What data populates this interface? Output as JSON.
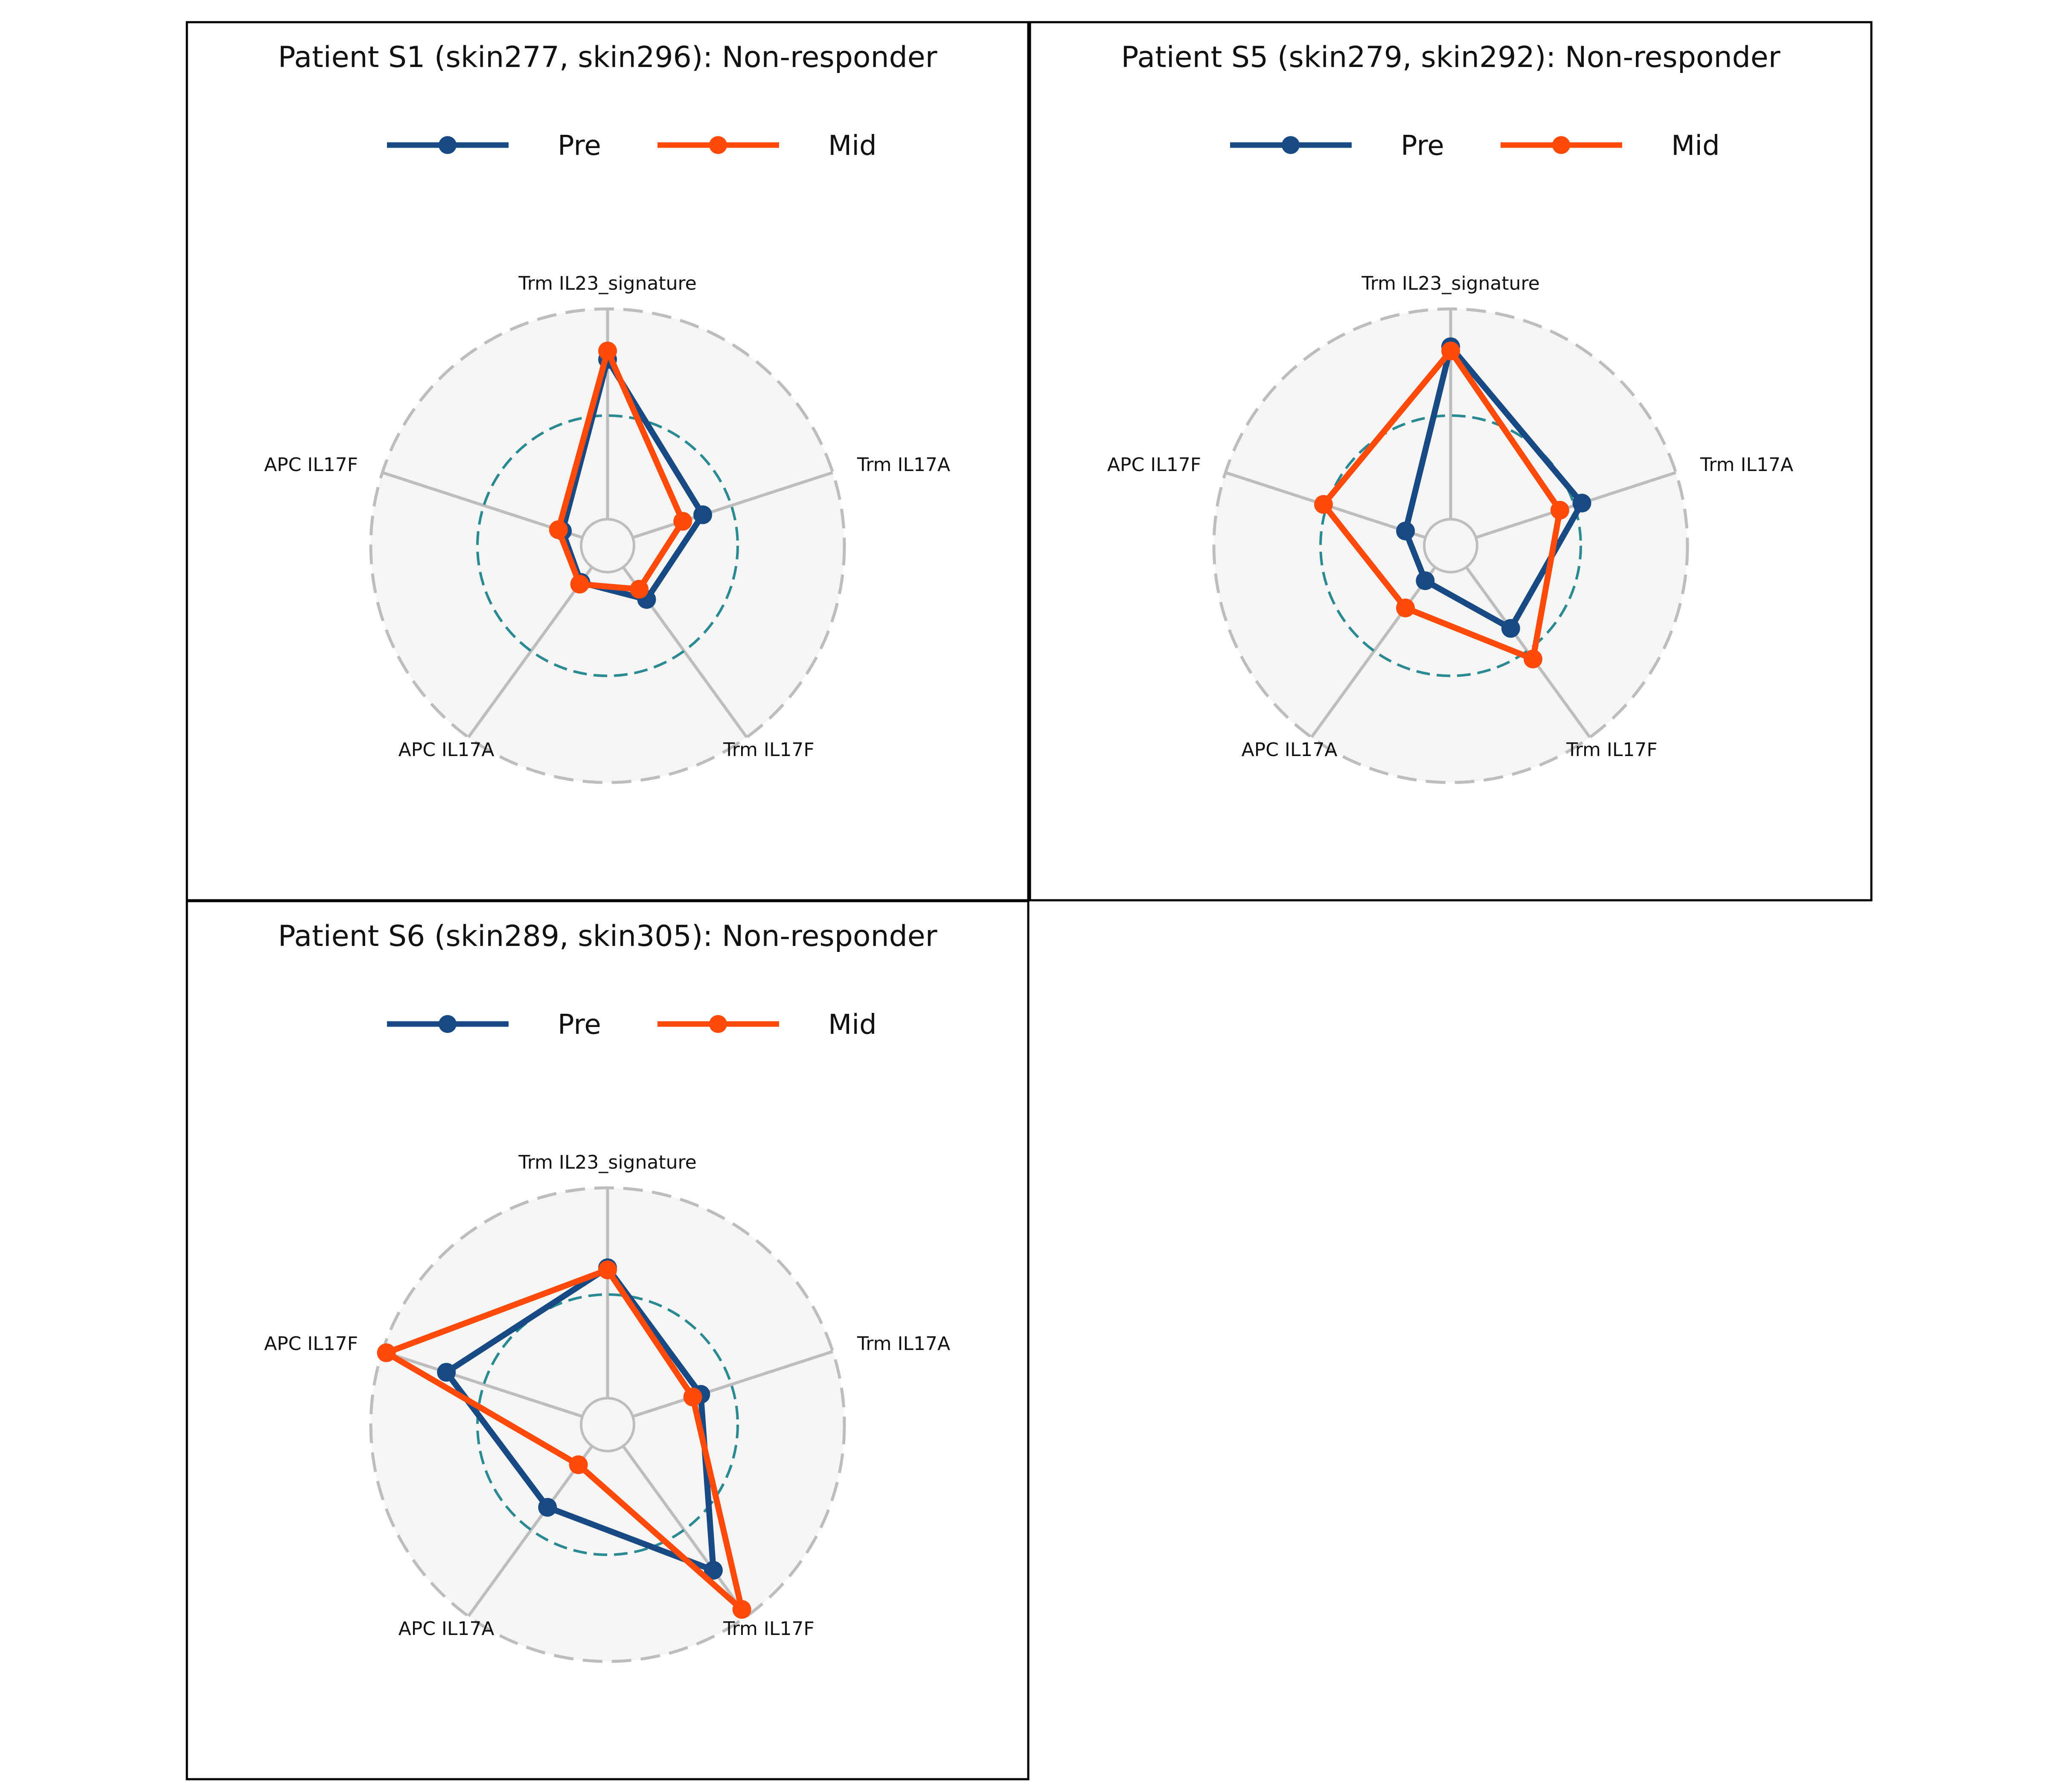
{
  "chart_data": [
    {
      "type": "radar",
      "title": "Patient S1 (skin277, skin296): Non-responder",
      "axes": [
        "Trm IL23_signature",
        "Trm IL17A",
        "Trm IL17F",
        "APC IL17A",
        "APC IL17F"
      ],
      "legend": "top-center",
      "series": [
        {
          "name": "Pre",
          "color": "#174a85",
          "values": [
            0.76,
            0.35,
            0.19,
            0.09,
            0.1
          ]
        },
        {
          "name": "Mid",
          "color": "#ff4a0c",
          "values": [
            0.8,
            0.25,
            0.13,
            0.1,
            0.12
          ]
        }
      ]
    },
    {
      "type": "radar",
      "title": "Patient S5 (skin279, skin292): Non-responder",
      "axes": [
        "Trm IL23_signature",
        "Trm IL17A",
        "Trm IL17F",
        "APC IL17A",
        "APC IL17F"
      ],
      "legend": "top-center",
      "series": [
        {
          "name": "Pre",
          "color": "#174a85",
          "values": [
            0.82,
            0.53,
            0.36,
            0.08,
            0.1
          ]
        },
        {
          "name": "Mid",
          "color": "#ff4a0c",
          "values": [
            0.8,
            0.42,
            0.54,
            0.24,
            0.51
          ]
        }
      ]
    },
    {
      "type": "radar",
      "title": "Patient S6 (skin289, skin305): Non-responder",
      "axes": [
        "Trm IL23_signature",
        "Trm IL17A",
        "Trm IL17F",
        "APC IL17A",
        "APC IL17F"
      ],
      "legend": "top-center",
      "series": [
        {
          "name": "Pre",
          "color": "#174a85",
          "values": [
            0.62,
            0.34,
            0.73,
            0.36,
            0.68
          ]
        },
        {
          "name": "Mid",
          "color": "#ff4a0c",
          "values": [
            0.61,
            0.3,
            0.96,
            0.11,
            0.98
          ]
        }
      ]
    }
  ]
}
